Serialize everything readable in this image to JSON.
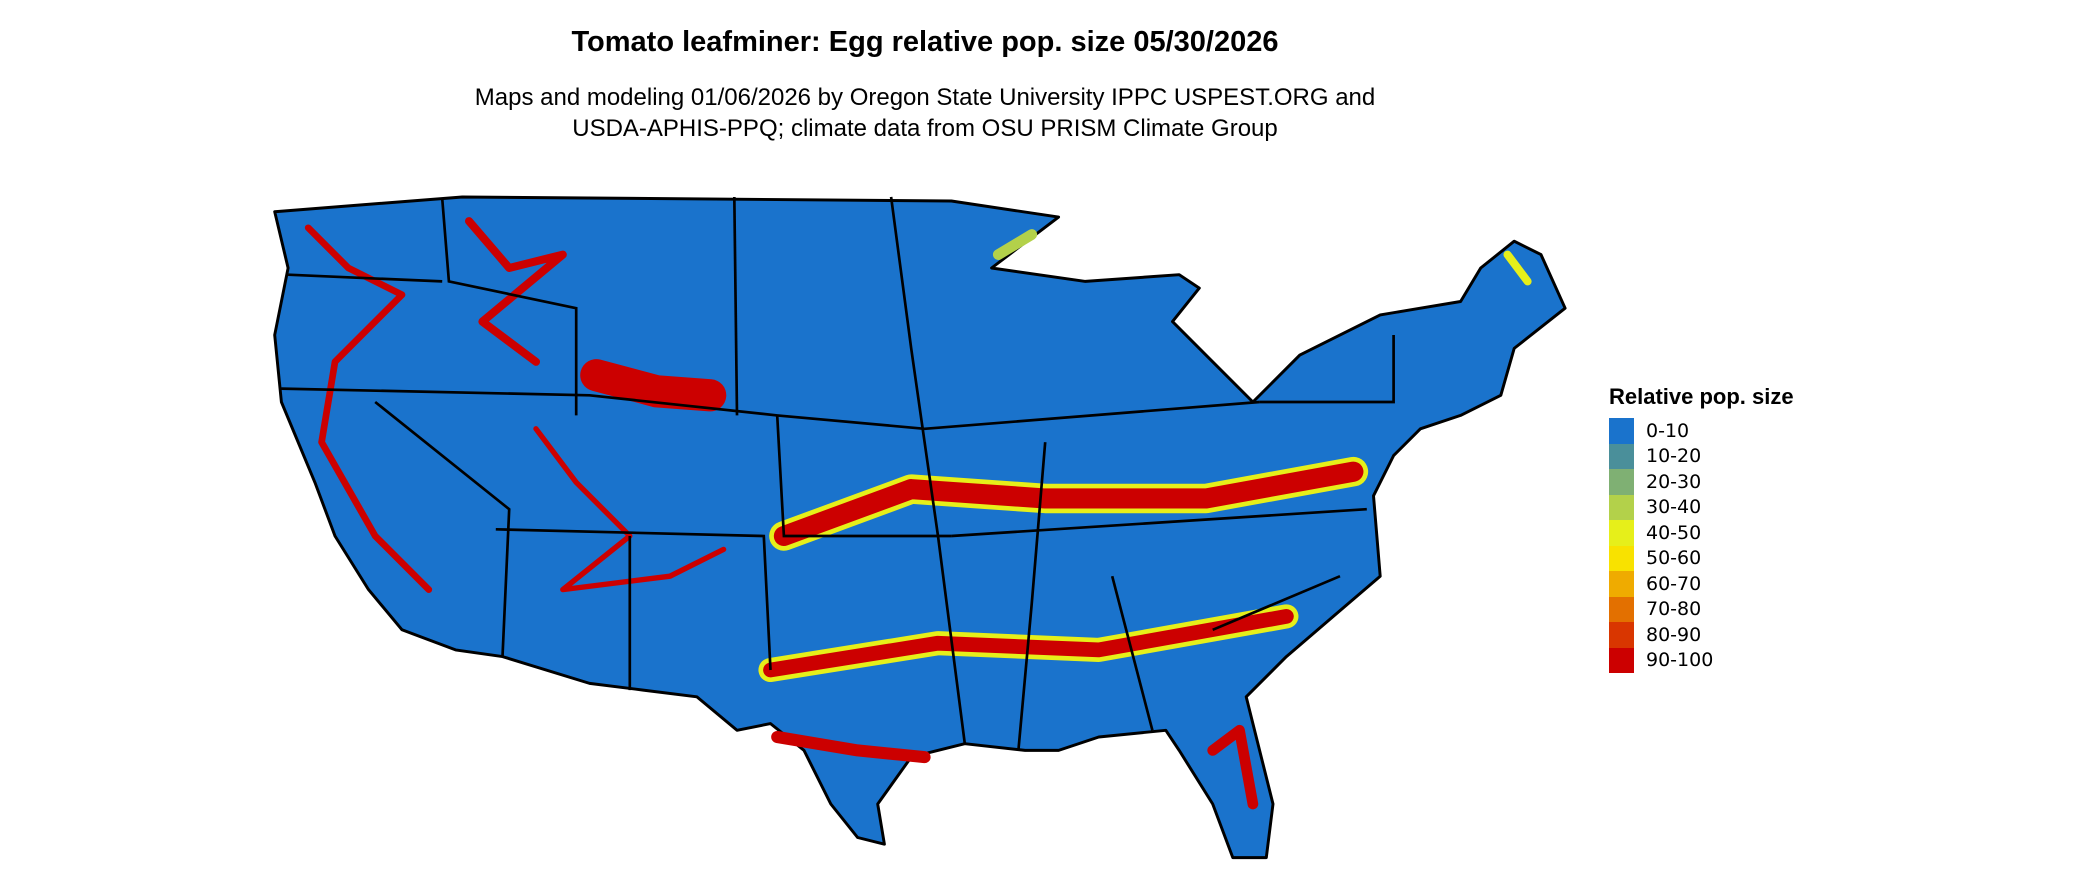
{
  "title": "Tomato leafminer: Egg relative pop. size 05/30/2026",
  "subtitle_lines": [
    "Maps and modeling 01/06/2026 by Oregon State University IPPC USPEST.ORG and",
    "USDA-APHIS-PPQ; climate data from OSU PRISM Climate Group"
  ],
  "legend": {
    "title": "Relative pop. size",
    "items": [
      {
        "label": "0-10",
        "color": "#1a73cc"
      },
      {
        "label": "10-20",
        "color": "#4a8f9a"
      },
      {
        "label": "20-30",
        "color": "#7fb073"
      },
      {
        "label": "30-40",
        "color": "#b3d14a"
      },
      {
        "label": "40-50",
        "color": "#e6ef1a"
      },
      {
        "label": "50-60",
        "color": "#f8e200"
      },
      {
        "label": "60-70",
        "color": "#efab00"
      },
      {
        "label": "70-80",
        "color": "#e37000"
      },
      {
        "label": "80-90",
        "color": "#d93600"
      },
      {
        "label": "90-100",
        "color": "#cc0000"
      }
    ]
  }
}
